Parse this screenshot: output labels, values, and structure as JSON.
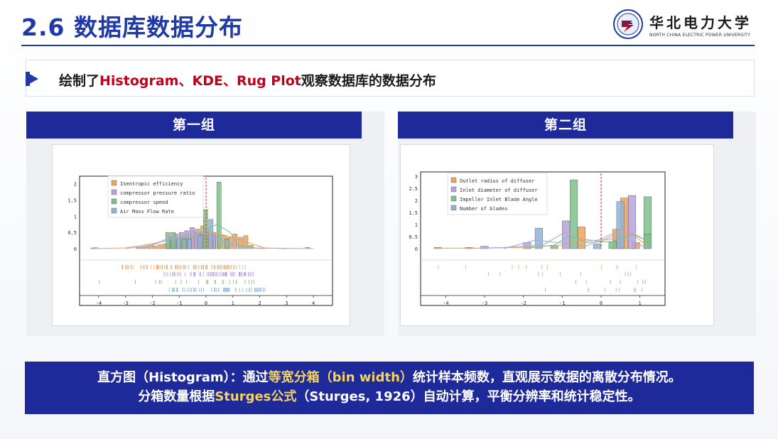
{
  "header": {
    "title": "2.6  数据库数据分布",
    "logo_cn": "华北电力大学",
    "logo_en": "NORTH CHINA ELECTRIC POWER UNIVERSITY"
  },
  "subtitle": {
    "prefix": "绘制了",
    "highlight": "Histogram、KDE、Rug Plot",
    "suffix": "观察数据库的数据分布"
  },
  "group1": {
    "label": "第一组",
    "chart_data": {
      "type": "histogram",
      "x_ticks": [
        "-4",
        "-3",
        "-2",
        "-1",
        "0",
        "1",
        "2",
        "3",
        "4"
      ],
      "y_ticks": [
        "0",
        "0.5",
        "1",
        "1.5",
        "2"
      ],
      "ylim": [
        0,
        2.1
      ],
      "series": [
        {
          "name": "Isentropic efficiency",
          "color": "#f2a25c"
        },
        {
          "name": "compressor pressure ratio",
          "color": "#b9a2dd"
        },
        {
          "name": "compressor speed",
          "color": "#7fbf8c"
        },
        {
          "name": "Air Mass Flow Rate",
          "color": "#8fb4d6"
        }
      ],
      "reference_line_x": 0
    }
  },
  "group2": {
    "label": "第二组",
    "chart_data": {
      "type": "histogram",
      "x_ticks": [
        "-4",
        "-3",
        "-2",
        "-1",
        "0",
        "1"
      ],
      "y_ticks": [
        "0",
        "0.5",
        "1",
        "1.5",
        "2",
        "2.5",
        "3"
      ],
      "ylim": [
        0,
        3
      ],
      "series": [
        {
          "name": "Outlet radius of diffuser",
          "color": "#f2a25c"
        },
        {
          "name": "Inlet diameter of diffuser",
          "color": "#b9a2dd"
        },
        {
          "name": "Impeller Inlet Blade Angle",
          "color": "#7fbf8c"
        },
        {
          "name": "Number of blades",
          "color": "#8fb4d6"
        }
      ],
      "reference_line_x": 0
    }
  },
  "bottom": {
    "line1_a": "直方图（Histogram）：通过",
    "line1_b": "等宽分箱（bin width）",
    "line1_c": "统计样本频数，直观展示数据的离散分布情况。",
    "line2_a": "分箱数量根据",
    "line2_b": "Sturges公式",
    "line2_c": "（Sturges, 1926）自动计算，平衡分辨率和统计稳定性。"
  }
}
